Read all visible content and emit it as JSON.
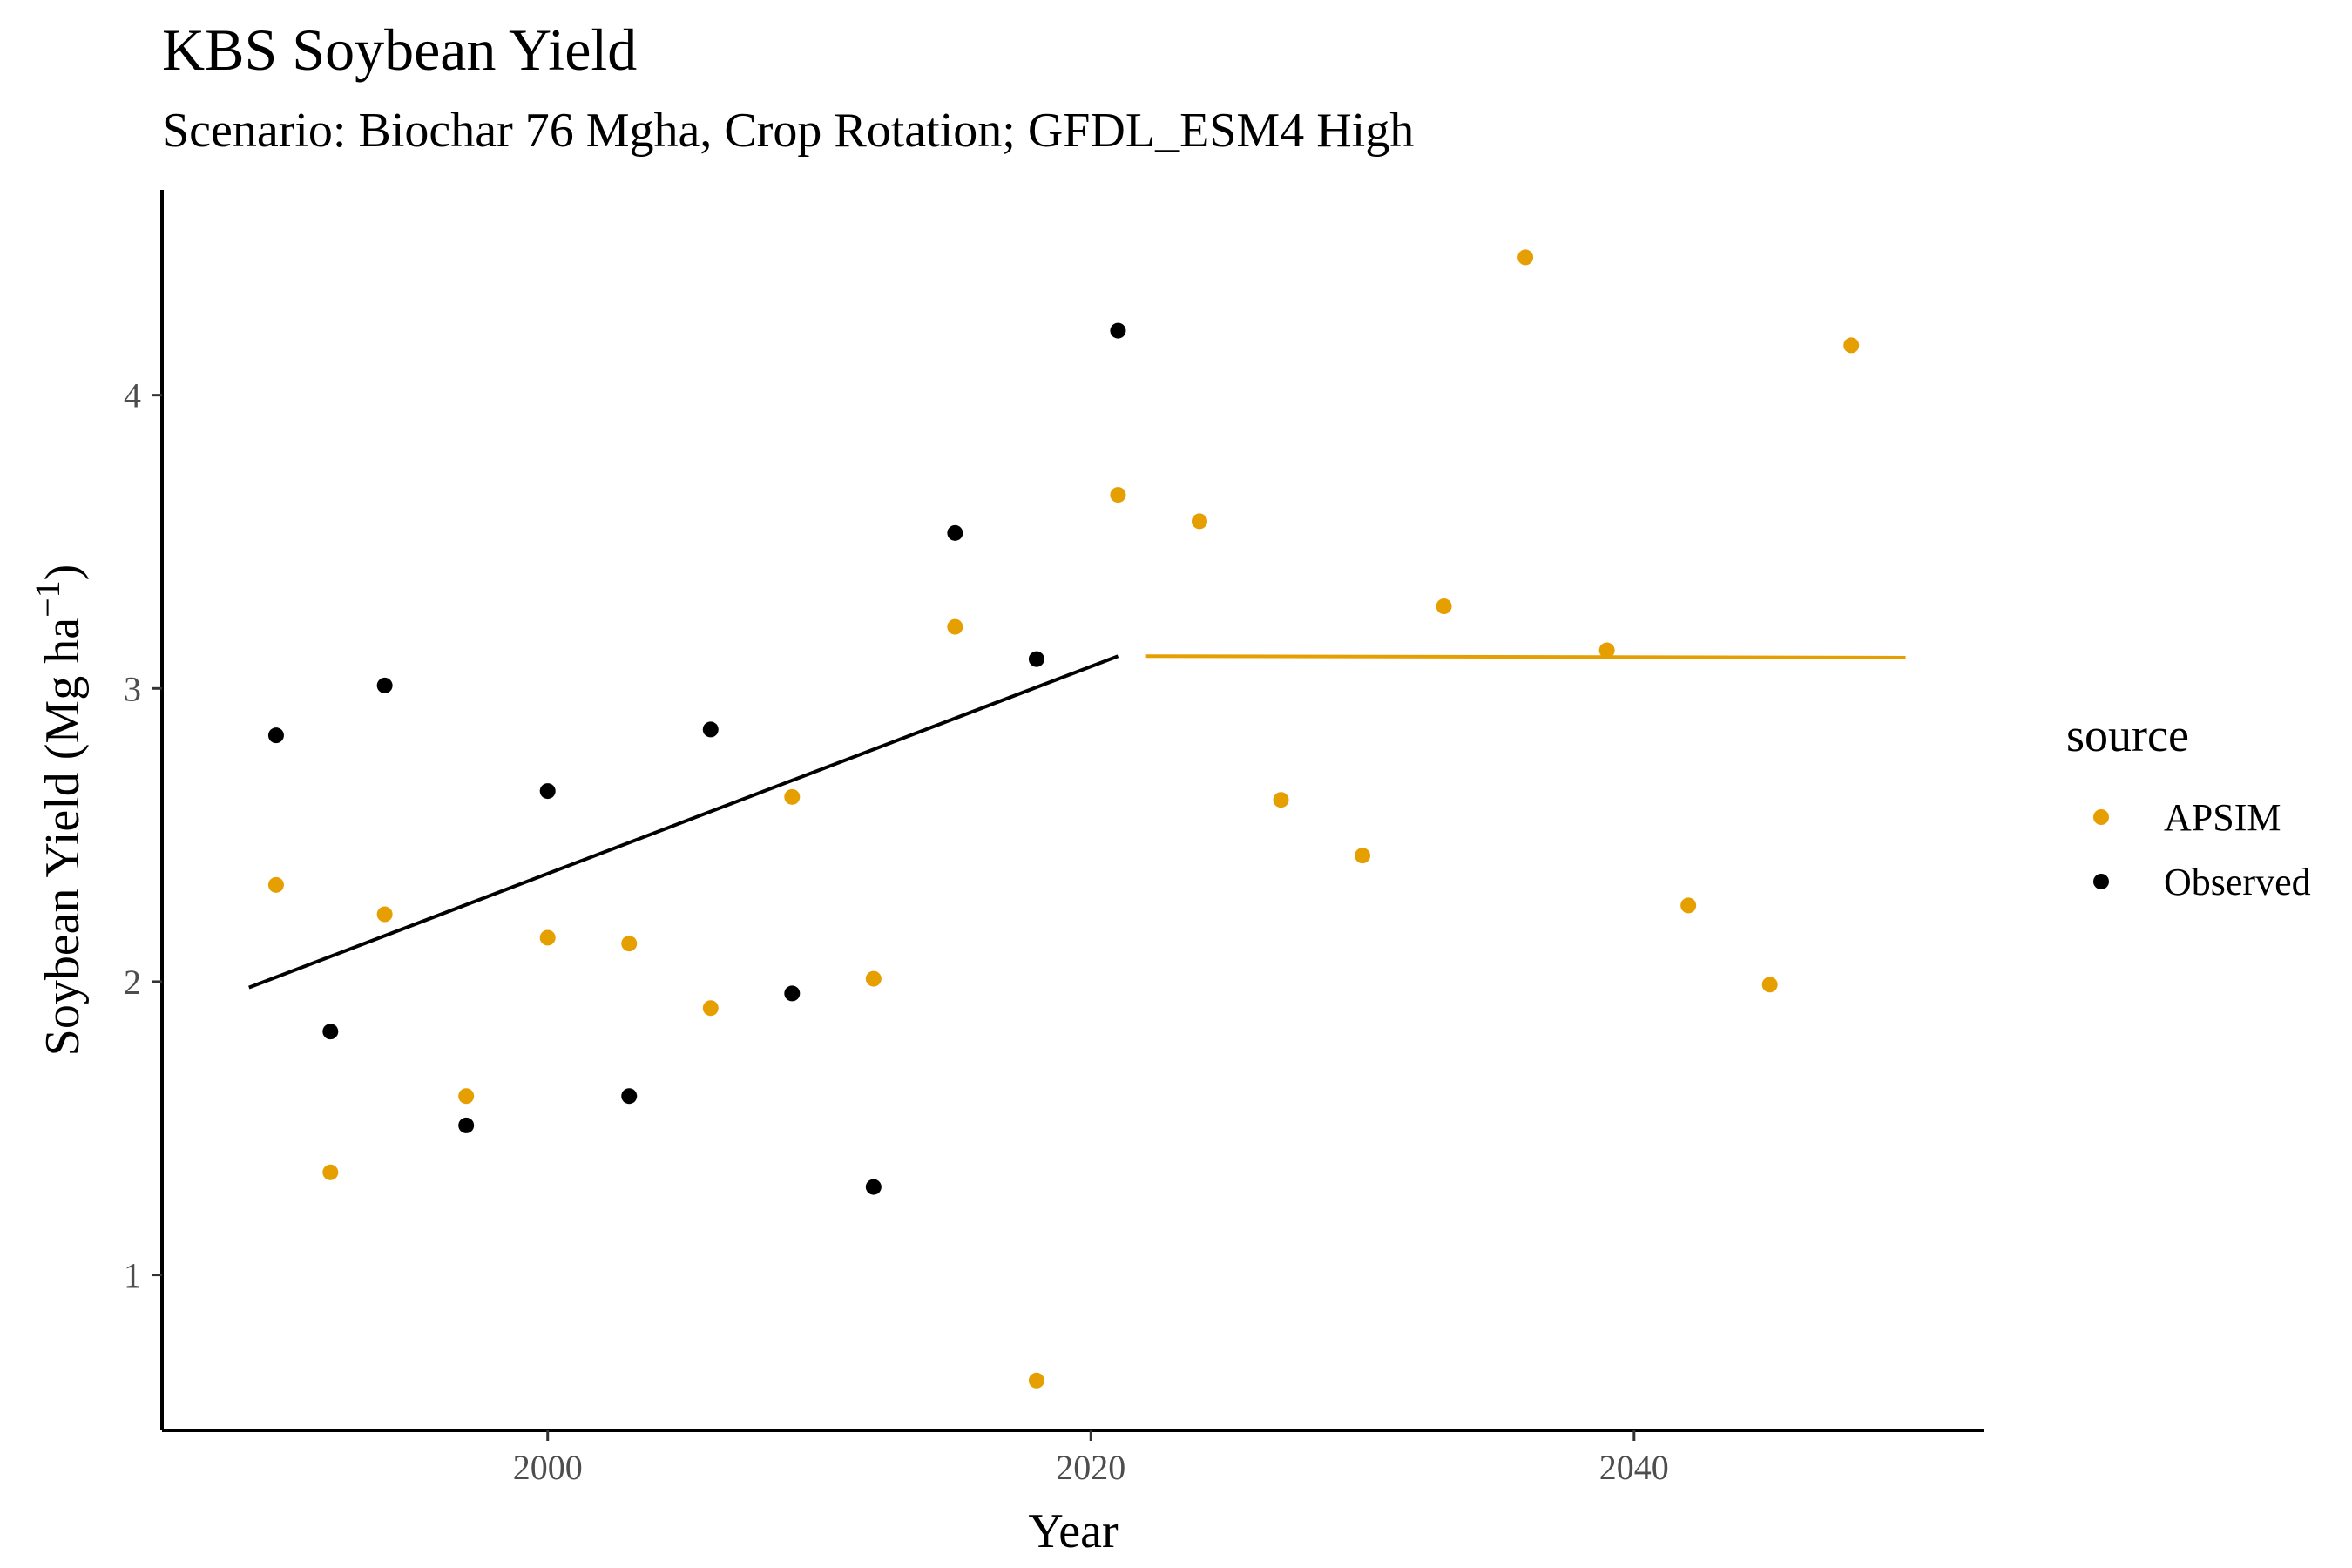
{
  "chart_data": {
    "type": "scatter",
    "title": "KBS Soybean Yield",
    "subtitle": "Scenario: Biochar 76 Mgha, Crop Rotation; GFDL_ESM4 High",
    "xlabel": "Year",
    "ylabel": "Soybean Yield (Mg ha",
    "ylabel_superscript": "−1",
    "ylabel_suffix": ")",
    "xlim": [
      1985.8,
      2052.9
    ],
    "ylim": [
      0.47,
      4.7
    ],
    "x_ticks": [
      2000,
      2020,
      2040
    ],
    "y_ticks": [
      1,
      2,
      3,
      4
    ],
    "grid": false,
    "legend": {
      "title": "source",
      "placement": "right"
    },
    "series": [
      {
        "name": "APSIM",
        "color": "#E69F00",
        "points": [
          {
            "x": 1990,
            "y": 2.33
          },
          {
            "x": 1992,
            "y": 1.35
          },
          {
            "x": 1994,
            "y": 2.23
          },
          {
            "x": 1997,
            "y": 1.61
          },
          {
            "x": 2000,
            "y": 2.15
          },
          {
            "x": 2003,
            "y": 2.13
          },
          {
            "x": 2006,
            "y": 1.91
          },
          {
            "x": 2009,
            "y": 2.63
          },
          {
            "x": 2012,
            "y": 2.01
          },
          {
            "x": 2015,
            "y": 3.21
          },
          {
            "x": 2018,
            "y": 0.64
          },
          {
            "x": 2021,
            "y": 3.66
          },
          {
            "x": 2024,
            "y": 3.57
          },
          {
            "x": 2027,
            "y": 2.62
          },
          {
            "x": 2030,
            "y": 2.43
          },
          {
            "x": 2033,
            "y": 3.28
          },
          {
            "x": 2036,
            "y": 4.47
          },
          {
            "x": 2039,
            "y": 3.13
          },
          {
            "x": 2042,
            "y": 2.26
          },
          {
            "x": 2045,
            "y": 1.99
          },
          {
            "x": 2048,
            "y": 4.17
          }
        ],
        "trend": {
          "x": [
            2022,
            2050
          ],
          "y": [
            3.11,
            3.105
          ]
        }
      },
      {
        "name": "Observed",
        "color": "#000000",
        "points": [
          {
            "x": 1990,
            "y": 2.84
          },
          {
            "x": 1992,
            "y": 1.83
          },
          {
            "x": 1994,
            "y": 3.01
          },
          {
            "x": 1997,
            "y": 1.51
          },
          {
            "x": 2000,
            "y": 2.65
          },
          {
            "x": 2003,
            "y": 1.61
          },
          {
            "x": 2006,
            "y": 2.86
          },
          {
            "x": 2009,
            "y": 1.96
          },
          {
            "x": 2012,
            "y": 1.3
          },
          {
            "x": 2015,
            "y": 3.53
          },
          {
            "x": 2018,
            "y": 3.1
          },
          {
            "x": 2021,
            "y": 4.22
          }
        ],
        "trend": {
          "x": [
            1989,
            2021
          ],
          "y": [
            1.98,
            3.11
          ]
        }
      }
    ]
  }
}
